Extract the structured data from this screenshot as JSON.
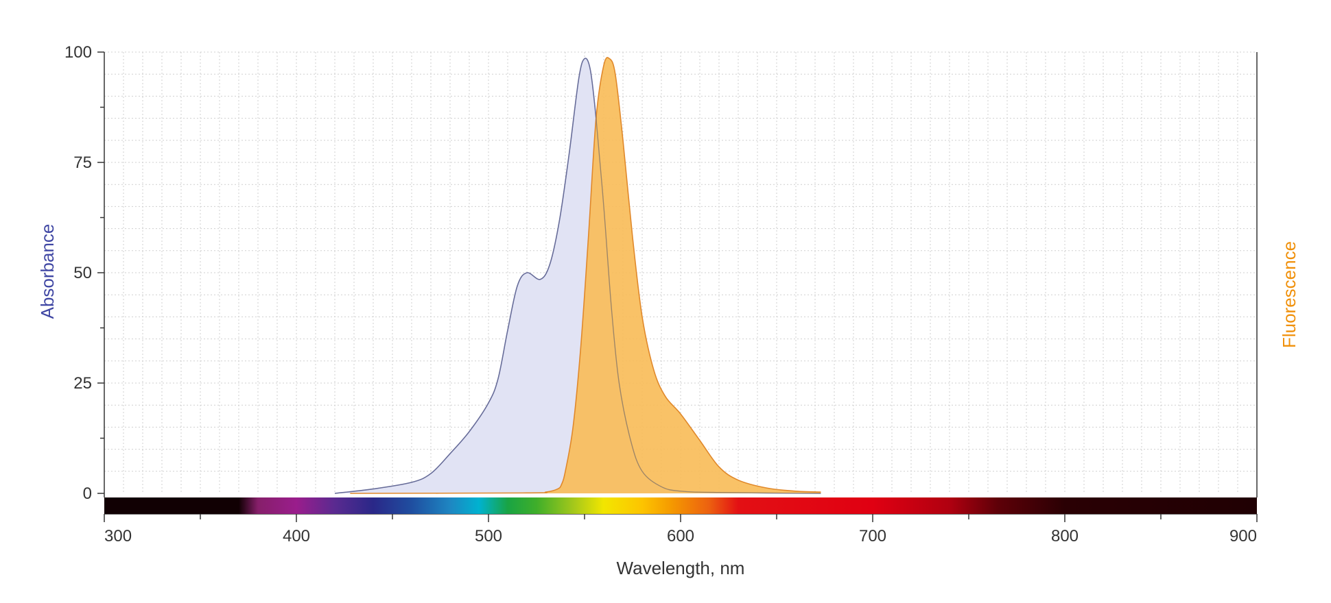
{
  "chart_data": {
    "type": "area",
    "xlabel": "Wavelength, nm",
    "ylabel_left": "Absorbance",
    "ylabel_right": "Fluorescence",
    "xlim": [
      300,
      900
    ],
    "ylim": [
      0,
      100
    ],
    "x_ticks": [
      300,
      400,
      500,
      600,
      700,
      800,
      900
    ],
    "y_ticks": [
      0,
      25,
      50,
      75,
      100
    ],
    "grid": true,
    "series": [
      {
        "name": "Absorbance",
        "color": "#7a80c0",
        "fill": "#e1e3f4",
        "points": [
          [
            420,
            0
          ],
          [
            440,
            1
          ],
          [
            460,
            2.5
          ],
          [
            470,
            4.5
          ],
          [
            480,
            9
          ],
          [
            490,
            14
          ],
          [
            500,
            20.5
          ],
          [
            505,
            26
          ],
          [
            510,
            37
          ],
          [
            515,
            47
          ],
          [
            520,
            50
          ],
          [
            527,
            48.5
          ],
          [
            532,
            52
          ],
          [
            537,
            62
          ],
          [
            542,
            77
          ],
          [
            547,
            94
          ],
          [
            550,
            98.5
          ],
          [
            553,
            96
          ],
          [
            556,
            85
          ],
          [
            560,
            65
          ],
          [
            564,
            42
          ],
          [
            568,
            25
          ],
          [
            574,
            12
          ],
          [
            580,
            5
          ],
          [
            590,
            1.5
          ],
          [
            600,
            0.5
          ],
          [
            620,
            0.2
          ],
          [
            673,
            0
          ]
        ]
      },
      {
        "name": "Fluorescence",
        "color": "#e0882a",
        "fill": "#f8bd5a",
        "points": [
          [
            428,
            0
          ],
          [
            520,
            0.1
          ],
          [
            530,
            0.3
          ],
          [
            536,
            1
          ],
          [
            538,
            2
          ],
          [
            540,
            5
          ],
          [
            544,
            15
          ],
          [
            548,
            33
          ],
          [
            552,
            58
          ],
          [
            556,
            85
          ],
          [
            560,
            97
          ],
          [
            563,
            98.5
          ],
          [
            566,
            95
          ],
          [
            570,
            80
          ],
          [
            575,
            58
          ],
          [
            580,
            40
          ],
          [
            586,
            28
          ],
          [
            592,
            22
          ],
          [
            600,
            18
          ],
          [
            610,
            12
          ],
          [
            620,
            6
          ],
          [
            630,
            3
          ],
          [
            645,
            1.2
          ],
          [
            660,
            0.5
          ],
          [
            673,
            0.3
          ]
        ]
      }
    ],
    "spectrum_colors": [
      [
        300,
        "#110003"
      ],
      [
        370,
        "#110003"
      ],
      [
        380,
        "#861f6a"
      ],
      [
        400,
        "#9a1d8c"
      ],
      [
        420,
        "#5a2a90"
      ],
      [
        440,
        "#2a2888"
      ],
      [
        460,
        "#1f4ea0"
      ],
      [
        480,
        "#1e86c2"
      ],
      [
        495,
        "#00b2d0"
      ],
      [
        510,
        "#19a444"
      ],
      [
        525,
        "#3fae2a"
      ],
      [
        545,
        "#a8c91a"
      ],
      [
        560,
        "#f2e600"
      ],
      [
        580,
        "#fdc400"
      ],
      [
        595,
        "#f59a00"
      ],
      [
        615,
        "#ec6010"
      ],
      [
        630,
        "#e31014"
      ],
      [
        700,
        "#e00012"
      ],
      [
        740,
        "#b00010"
      ],
      [
        765,
        "#5e0008"
      ],
      [
        800,
        "#2a0004"
      ],
      [
        900,
        "#200003"
      ]
    ]
  }
}
